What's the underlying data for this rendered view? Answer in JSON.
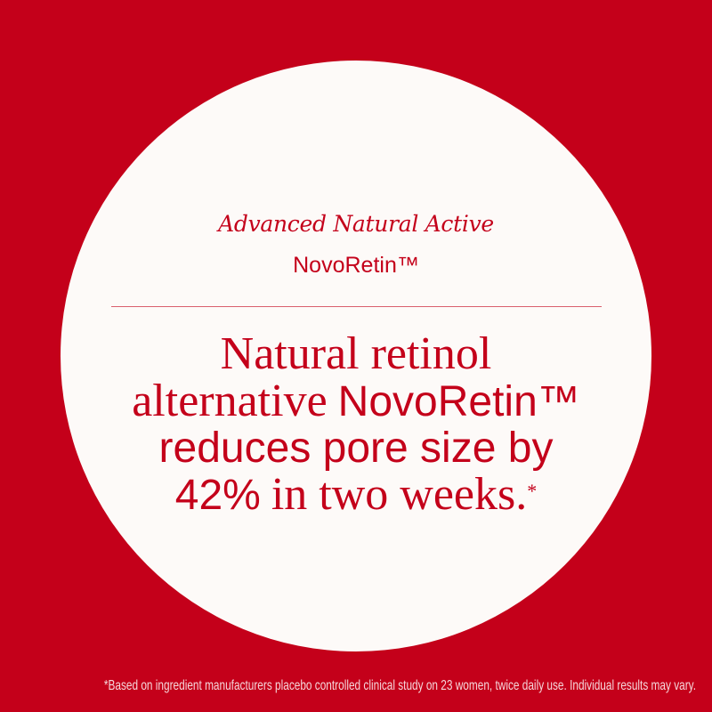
{
  "colors": {
    "background": "#c4001a",
    "circle": "#fdfaf8",
    "text": "#c4001a"
  },
  "eyebrow": "Advanced Natural Active",
  "product_name": "NovoRetin™",
  "headline": {
    "line1": "Natural retinol",
    "line2_serif": "alternative",
    "line2_sans": "NovoRetin™",
    "line3": "reduces pore size by",
    "line4_sans": "42%",
    "line4_serif": "in two weeks.",
    "footnote_mark": "*"
  },
  "footer": "*Based on ingredient manufacturers placebo controlled clinical study on 23 women, twice daily use. Individual results may vary."
}
